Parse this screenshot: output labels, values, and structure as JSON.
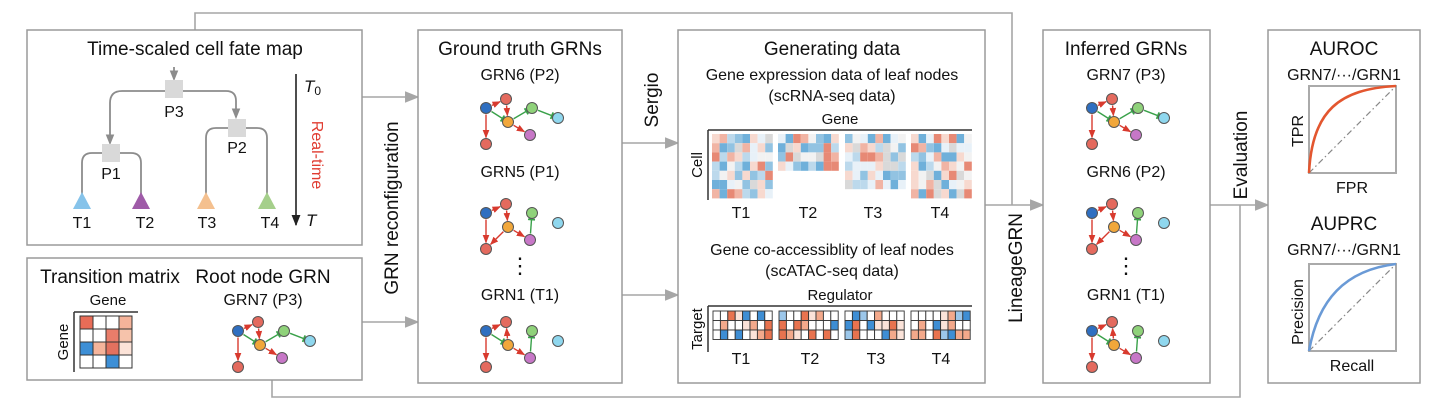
{
  "colors": {
    "red": "#e46a5e",
    "orange": "#f1a73b",
    "green": "#8fd27a",
    "blue": "#2f6fc1",
    "purple": "#c777c7",
    "cyan": "#8fd7ee",
    "edge_red": "#d83a2e",
    "edge_green": "#3aa14a",
    "tri_blue": "#86c3ea",
    "tri_purple": "#9f5ba8",
    "tri_orange": "#f4c08f",
    "tri_green": "#a5cf8b",
    "curve_roc": "#e3562f",
    "curve_pr": "#6a9ad6",
    "realtime": "#e03c31"
  },
  "fate_map": {
    "title": "Time-scaled cell fate map",
    "nodes": [
      "P3",
      "P1",
      "P2"
    ],
    "leaves": [
      "T1",
      "T2",
      "T3",
      "T4"
    ],
    "time_start": "T",
    "time_start_sub": "0",
    "time_end": "T",
    "time_label": "Real-time"
  },
  "transition": {
    "title": "Transition matrix",
    "col_label": "Gene",
    "row_label": "Gene",
    "cells": [
      [
        "#e86c57",
        "#ffffff",
        "#ffffff",
        "#f5b39a"
      ],
      [
        "#ffffff",
        "#ffffff",
        "#e97d6a",
        "#f6c3ab"
      ],
      [
        "#3d8fd6",
        "#f5b49b",
        "#e2715f",
        "#fce3d8"
      ],
      [
        "#ffffff",
        "#ffffff",
        "#3d8fd6",
        "#ffffff"
      ]
    ]
  },
  "root_grn": {
    "title": "Root node GRN",
    "label": "GRN7 (P3)"
  },
  "ground_truth": {
    "title": "Ground truth GRNs",
    "grns": [
      "GRN6 (P2)",
      "GRN5 (P1)",
      "GRN1 (T1)"
    ],
    "ellipsis": "⋮"
  },
  "labels": {
    "grn_reconfig": "GRN reconfiguration",
    "sergio": "Sergio",
    "lineagegrn": "LineageGRN",
    "evaluation": "Evaluation"
  },
  "generating": {
    "title": "Generating data",
    "expr_title": "Gene expression data of leaf nodes",
    "expr_sub": "(scRNA-seq data)",
    "expr_col_label": "Gene",
    "expr_row_label": "Cell",
    "leaves": [
      "T1",
      "T2",
      "T3",
      "T4"
    ],
    "acc_title": "Gene co-accessiblity of leaf nodes",
    "acc_sub": "(scATAC-seq data)",
    "acc_col_label": "Regulator",
    "acc_row_label": "Target"
  },
  "inferred": {
    "title": "Inferred GRNs",
    "grns": [
      "GRN7 (P3)",
      "GRN6 (P2)",
      "GRN1 (T1)"
    ],
    "ellipsis": "⋮"
  },
  "evaluation": {
    "auroc": {
      "title": "AUROC",
      "subtitle": "GRN7/···/GRN1",
      "xlabel": "FPR",
      "ylabel": "TPR"
    },
    "auprc": {
      "title": "AUPRC",
      "subtitle": "GRN7/···/GRN1",
      "xlabel": "Recall",
      "ylabel": "Precision"
    }
  }
}
